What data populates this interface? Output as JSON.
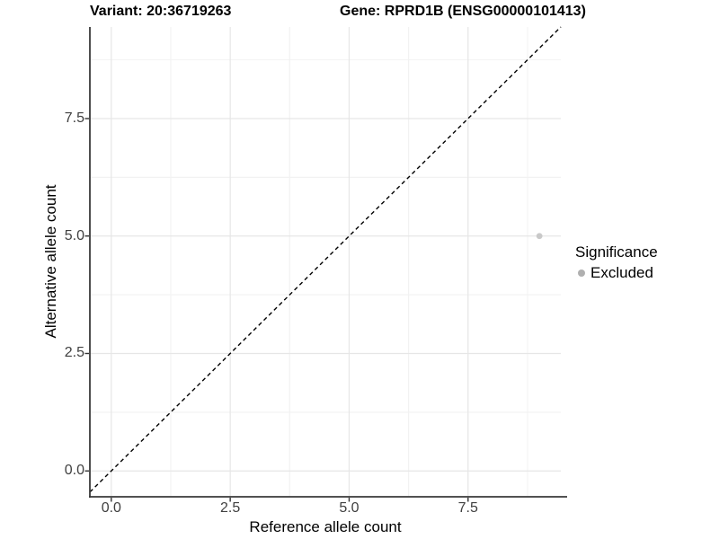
{
  "chart_data": {
    "type": "scatter",
    "titles": {
      "variant": "Variant: 20:36719263",
      "gene": "Gene: RPRD1B (ENSG00000101413)"
    },
    "xlabel": "Reference allele count",
    "ylabel": "Alternative allele count",
    "x_ticks": {
      "values": [
        0,
        2.5,
        5,
        7.5
      ],
      "labels": [
        "0.0",
        "2.5",
        "5.0",
        "7.5"
      ]
    },
    "y_ticks": {
      "values": [
        0,
        2.5,
        5,
        7.5
      ],
      "labels": [
        "0.0",
        "2.5",
        "5.0",
        "7.5"
      ]
    },
    "xlim": [
      -0.45,
      9.45
    ],
    "ylim": [
      -0.55,
      9.45
    ],
    "minor_grid_step": 1.25,
    "grid": true,
    "points": [
      {
        "x": 9,
        "y": 5,
        "series": "Excluded",
        "color": "#c9c9c9"
      }
    ],
    "abline": {
      "slope": 1,
      "intercept": 0,
      "style": "dashed",
      "color": "#000000"
    },
    "legend": {
      "title": "Significance",
      "position": "right",
      "items": [
        {
          "label": "Excluded",
          "color": "#b0b0b0"
        }
      ]
    },
    "colors": {
      "background": "#ffffff",
      "grid_major": "#e6e6e6",
      "grid_minor": "#f2f2f2",
      "axis_line": "#3a3a3a",
      "tick_mark": "#333333",
      "tick_text": "#404040"
    }
  }
}
